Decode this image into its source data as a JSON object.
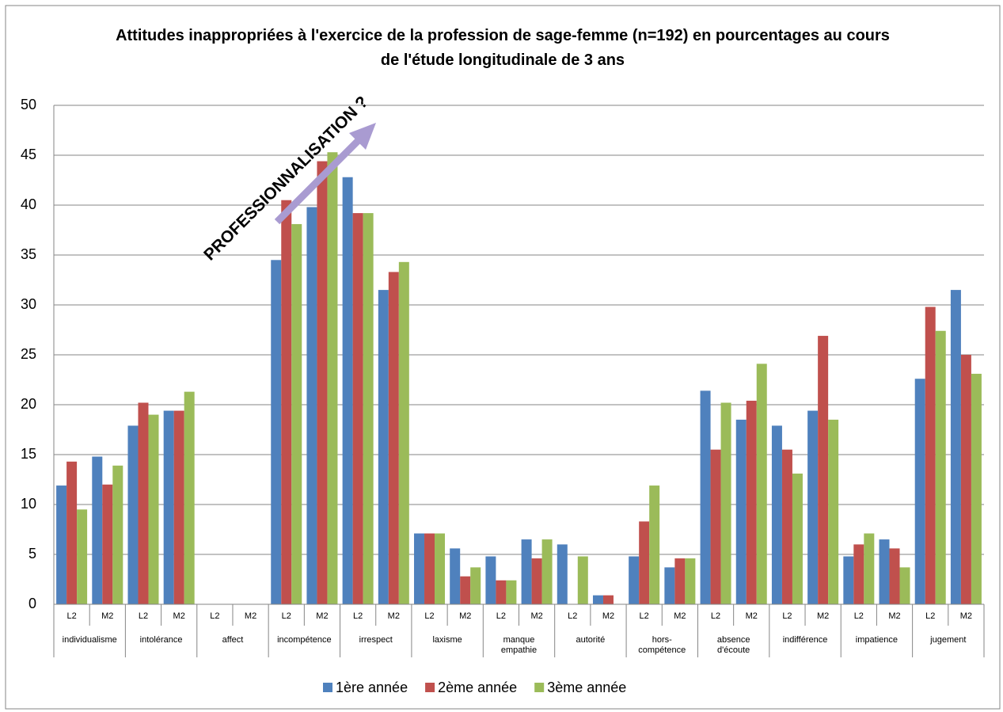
{
  "chart_data": {
    "type": "bar",
    "title": "Attitudes inappropriées à l'exercice de la profession de sage-femme (n=192) en pourcentages au cours de l'étude longitudinale de 3 ans",
    "annotation": "PROFESSIONNALISATION ?",
    "groups": [
      "individualisme",
      "intolérance",
      "affect",
      "incompétence",
      "irrespect",
      "laxisme",
      "manque empathie",
      "autorité",
      "hors-compétence",
      "absence d'écoute",
      "indifférence",
      "impatience",
      "jugement"
    ],
    "categories": [
      "L2",
      "M2",
      "L2",
      "M2",
      "L2",
      "M2",
      "L2",
      "M2",
      "L2",
      "M2",
      "L2",
      "M2",
      "L2",
      "M2",
      "L2",
      "M2",
      "L2",
      "M2",
      "L2",
      "M2",
      "L2",
      "M2",
      "L2",
      "M2",
      "L2",
      "M2"
    ],
    "series": [
      {
        "name": "1ère année",
        "color": "#4f81bd",
        "values": [
          11.9,
          14.8,
          17.9,
          19.4,
          0,
          0,
          34.5,
          39.8,
          42.8,
          31.5,
          7.1,
          5.6,
          4.8,
          6.5,
          6.0,
          0.9,
          4.8,
          3.7,
          21.4,
          18.5,
          17.9,
          19.4,
          4.8,
          6.5,
          22.6,
          31.5
        ]
      },
      {
        "name": "2ème année",
        "color": "#c0504d",
        "values": [
          14.3,
          12.0,
          20.2,
          19.4,
          0,
          0,
          40.5,
          44.4,
          39.2,
          33.3,
          7.1,
          2.8,
          2.4,
          4.6,
          0,
          0.9,
          8.3,
          4.6,
          15.5,
          20.4,
          15.5,
          26.9,
          6.0,
          5.6,
          29.8,
          25.0
        ]
      },
      {
        "name": "3ème année",
        "color": "#9bbb59",
        "values": [
          9.5,
          13.9,
          19.0,
          21.3,
          0,
          0,
          38.1,
          45.3,
          39.2,
          34.3,
          7.1,
          3.7,
          2.4,
          6.5,
          4.8,
          0,
          11.9,
          4.6,
          20.2,
          24.1,
          13.1,
          18.5,
          7.1,
          3.7,
          27.4,
          23.1
        ]
      }
    ],
    "ylim": [
      0,
      50
    ],
    "yticks": [
      0,
      5,
      10,
      15,
      20,
      25,
      30,
      35,
      40,
      45,
      50
    ],
    "grid": true
  }
}
